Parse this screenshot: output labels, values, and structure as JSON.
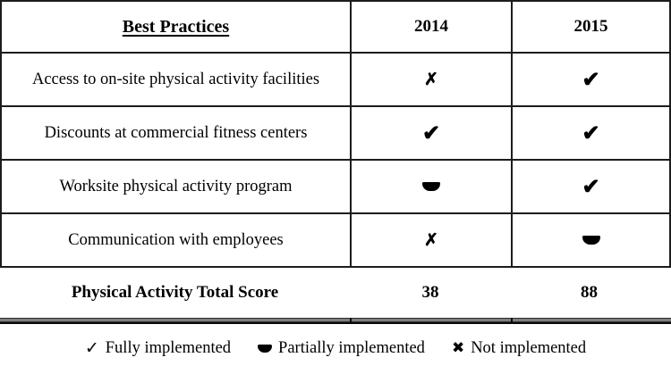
{
  "table": {
    "columns": [
      "Best Practices",
      "2014",
      "2015"
    ],
    "rows": [
      {
        "label": "Access to on-site physical activity facilities",
        "y2014": "not",
        "y2015": "full"
      },
      {
        "label": "Discounts at commercial fitness centers",
        "y2014": "full",
        "y2015": "full"
      },
      {
        "label": "Worksite physical activity program",
        "y2014": "partial",
        "y2015": "full"
      },
      {
        "label": "Communication with employees",
        "y2014": "not",
        "y2015": "partial"
      }
    ],
    "total_row": {
      "label": "Physical Activity Total Score",
      "y2014": "38",
      "y2015": "88"
    }
  },
  "icons": {
    "full": "✔",
    "not": "✗",
    "partial": "half-disk",
    "legend_check": "✓",
    "legend_cross": "✖"
  },
  "legend": {
    "items": [
      {
        "icon": "legend_check",
        "label": "Fully implemented"
      },
      {
        "icon": "partial",
        "label": "Partially implemented"
      },
      {
        "icon": "legend_cross",
        "label": "Not implemented"
      }
    ]
  },
  "colors": {
    "text": "#000000",
    "border": "#1c1c1c",
    "background": "#ffffff"
  }
}
